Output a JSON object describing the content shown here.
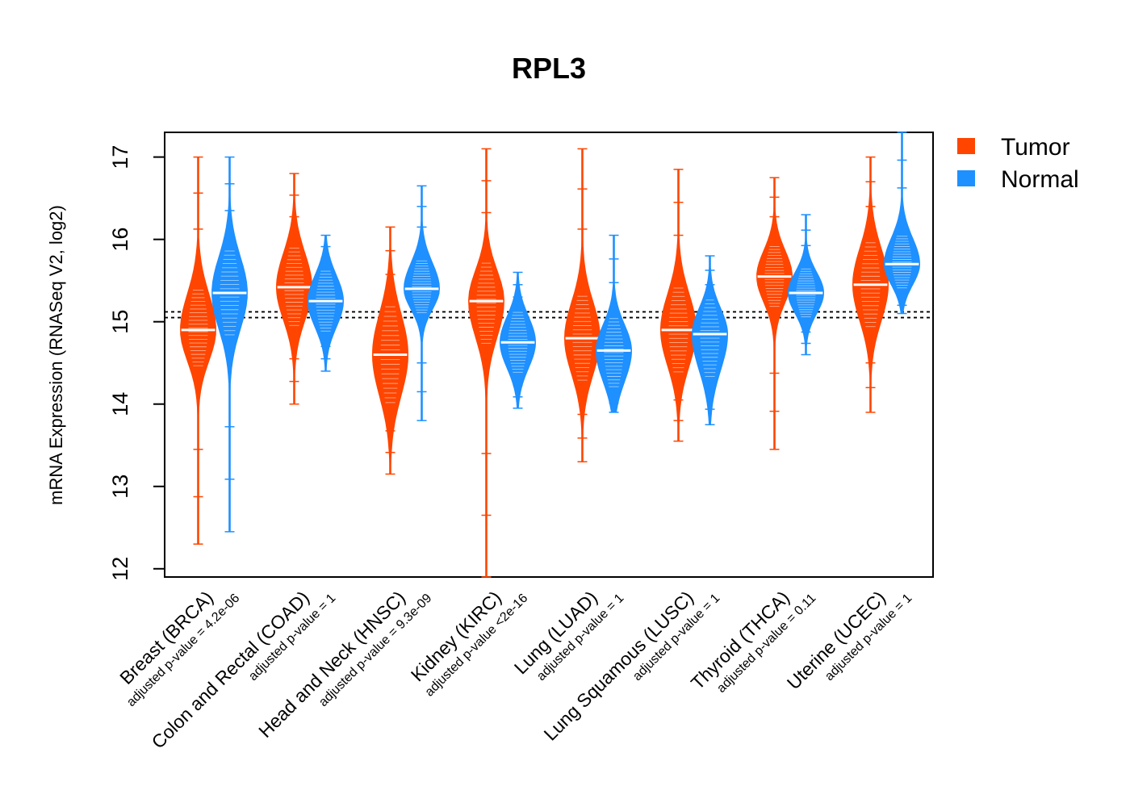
{
  "chart_data": {
    "type": "violin",
    "title": "RPL3",
    "ylabel": "mRNA Expression (RNASeq V2, log2)",
    "ylim": [
      11.9,
      17.3
    ],
    "yticks": [
      "12",
      "13",
      "14",
      "15",
      "16",
      "17"
    ],
    "reference_lines": [
      15.05,
      15.12
    ],
    "legend": [
      {
        "label": "Tumor",
        "color": "#ff4500"
      },
      {
        "label": "Normal",
        "color": "#1e90ff"
      }
    ],
    "groups": [
      {
        "label": "Breast (BRCA)",
        "pvalue_label": "adjusted p-value = 4.2e-06",
        "tumor": {
          "median": 14.9,
          "min": 12.3,
          "max": 17.0,
          "q1": 14.6,
          "q3": 15.25
        },
        "normal": {
          "median": 15.35,
          "min": 12.45,
          "max": 17.0,
          "q1": 15.0,
          "q3": 15.7
        }
      },
      {
        "label": "Colon and Rectal (COAD)",
        "pvalue_label": "adjusted p-value = 1",
        "tumor": {
          "median": 15.42,
          "min": 14.0,
          "max": 16.8,
          "q1": 15.1,
          "q3": 15.75
        },
        "normal": {
          "median": 15.25,
          "min": 14.4,
          "max": 16.05,
          "q1": 15.0,
          "q3": 15.5
        }
      },
      {
        "label": "Head and Neck (HNSC)",
        "pvalue_label": "adjusted p-value = 9.3e-09",
        "tumor": {
          "median": 14.6,
          "min": 13.15,
          "max": 16.15,
          "q1": 14.2,
          "q3": 15.0
        },
        "normal": {
          "median": 15.4,
          "min": 13.8,
          "max": 16.65,
          "q1": 15.2,
          "q3": 15.65
        }
      },
      {
        "label": "Kidney (KIRC)",
        "pvalue_label": "adjusted p-value <2e-16",
        "tumor": {
          "median": 15.25,
          "min": 11.9,
          "max": 17.1,
          "q1": 14.9,
          "q3": 15.55
        },
        "normal": {
          "median": 14.75,
          "min": 13.95,
          "max": 15.6,
          "q1": 14.5,
          "q3": 15.0
        }
      },
      {
        "label": "Lung (LUAD)",
        "pvalue_label": "adjusted p-value = 1",
        "tumor": {
          "median": 14.8,
          "min": 13.3,
          "max": 17.1,
          "q1": 14.45,
          "q3": 15.15
        },
        "normal": {
          "median": 14.65,
          "min": 13.9,
          "max": 16.05,
          "q1": 14.35,
          "q3": 14.9
        }
      },
      {
        "label": "Lung Squamous (LUSC)",
        "pvalue_label": "adjusted p-value = 1",
        "tumor": {
          "median": 14.9,
          "min": 13.55,
          "max": 16.85,
          "q1": 14.55,
          "q3": 15.25
        },
        "normal": {
          "median": 14.85,
          "min": 13.75,
          "max": 15.8,
          "q1": 14.5,
          "q3": 15.1
        }
      },
      {
        "label": "Thyroid (THCA)",
        "pvalue_label": "adjusted p-value = 0.11",
        "tumor": {
          "median": 15.55,
          "min": 13.45,
          "max": 16.75,
          "q1": 15.3,
          "q3": 15.8
        },
        "normal": {
          "median": 15.35,
          "min": 14.6,
          "max": 16.3,
          "q1": 15.15,
          "q3": 15.55
        }
      },
      {
        "label": "Uterine (UCEC)",
        "pvalue_label": "adjusted p-value = 1",
        "tumor": {
          "median": 15.45,
          "min": 13.9,
          "max": 17.0,
          "q1": 15.1,
          "q3": 15.8
        },
        "normal": {
          "median": 15.7,
          "min": 15.1,
          "max": 17.3,
          "q1": 15.5,
          "q3": 15.95
        }
      }
    ]
  }
}
